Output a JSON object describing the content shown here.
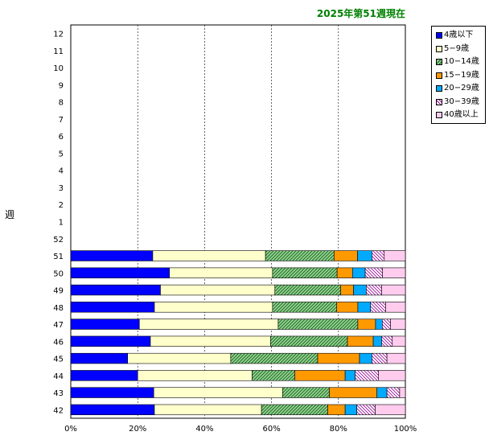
{
  "title": "2025年第51週現在",
  "chart_data": {
    "type": "bar",
    "orientation": "horizontal",
    "stacked": "percent",
    "ylabel": "週",
    "xlabel": "",
    "xlim": [
      0,
      100
    ],
    "x_ticks": [
      "0%",
      "20%",
      "40%",
      "60%",
      "80%",
      "100%"
    ],
    "grid": "vertical dashed",
    "legend_position": "right-top",
    "categories": [
      "12",
      "11",
      "10",
      "9",
      "8",
      "7",
      "6",
      "5",
      "4",
      "3",
      "2",
      "1",
      "52",
      "51",
      "50",
      "49",
      "48",
      "47",
      "46",
      "45",
      "44",
      "43",
      "42"
    ],
    "series": [
      {
        "name": "4歳以下",
        "color": "#0000ff",
        "pattern": "solid",
        "values": [
          null,
          null,
          null,
          null,
          null,
          null,
          null,
          null,
          null,
          null,
          null,
          null,
          null,
          24.5,
          29.5,
          26.8,
          25.0,
          20.5,
          23.8,
          17.0,
          20.0,
          24.8,
          25.0
        ]
      },
      {
        "name": "5−9歳",
        "color": "#ffffcc",
        "pattern": "solid",
        "values": [
          null,
          null,
          null,
          null,
          null,
          null,
          null,
          null,
          null,
          null,
          null,
          null,
          null,
          33.7,
          30.8,
          34.2,
          35.3,
          41.5,
          35.9,
          30.8,
          34.2,
          38.5,
          32.0
        ]
      },
      {
        "name": "10−14歳",
        "color": "#99cc99",
        "pattern": "hatch",
        "values": [
          null,
          null,
          null,
          null,
          null,
          null,
          null,
          null,
          null,
          null,
          null,
          null,
          null,
          20.5,
          19.3,
          19.7,
          19.2,
          23.8,
          23.0,
          26.0,
          12.8,
          14.0,
          19.8
        ]
      },
      {
        "name": "15−19歳",
        "color": "#ff9900",
        "pattern": "solid",
        "values": [
          null,
          null,
          null,
          null,
          null,
          null,
          null,
          null,
          null,
          null,
          null,
          null,
          null,
          7.0,
          4.6,
          3.8,
          6.3,
          5.3,
          7.7,
          12.5,
          15.0,
          14.2,
          5.2
        ]
      },
      {
        "name": "20−29歳",
        "color": "#00aaff",
        "pattern": "solid",
        "values": [
          null,
          null,
          null,
          null,
          null,
          null,
          null,
          null,
          null,
          null,
          null,
          null,
          null,
          4.3,
          3.8,
          3.8,
          3.8,
          2.0,
          2.5,
          3.7,
          3.0,
          3.0,
          3.5
        ]
      },
      {
        "name": "30−39歳",
        "color": "#cc66cc",
        "pattern": "crosshatch",
        "values": [
          null,
          null,
          null,
          null,
          null,
          null,
          null,
          null,
          null,
          null,
          null,
          null,
          null,
          3.7,
          5.2,
          4.6,
          4.5,
          2.5,
          3.2,
          4.5,
          7.0,
          3.8,
          5.5
        ]
      },
      {
        "name": "40歳以上",
        "color": "#ffccee",
        "pattern": "solid",
        "values": [
          null,
          null,
          null,
          null,
          null,
          null,
          null,
          null,
          null,
          null,
          null,
          null,
          null,
          6.3,
          6.8,
          7.1,
          5.9,
          4.4,
          3.9,
          5.5,
          8.0,
          1.7,
          9.0
        ]
      }
    ]
  }
}
